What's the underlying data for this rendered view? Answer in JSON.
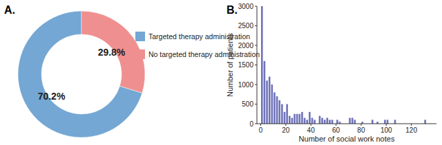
{
  "chart_data": [
    {
      "type": "donut",
      "title": "A.",
      "categories": [
        "Targeted therapy administration",
        "No targeted therapy administration"
      ],
      "values": [
        70.2,
        29.8
      ],
      "value_labels": [
        "70.2%",
        "29.8%"
      ],
      "colors": [
        "#74a7d3",
        "#ef8f8f"
      ],
      "data_labels": true,
      "legend": "right"
    },
    {
      "type": "histogram",
      "title": "B.",
      "x_label": "Number of social work notes",
      "y_label": "Number of patients",
      "bins": [
        0,
        2,
        4,
        6,
        8,
        10,
        12,
        14,
        16,
        18,
        20,
        22,
        24,
        26,
        28,
        30,
        32,
        34,
        36,
        38,
        40,
        42,
        44,
        46,
        48,
        50,
        52,
        54,
        56,
        58,
        60,
        62,
        64,
        66,
        68,
        70,
        72,
        74,
        76,
        78,
        80,
        82,
        84,
        86,
        88,
        90,
        92,
        94,
        96,
        98,
        100,
        102,
        104,
        106,
        108,
        110,
        112,
        114,
        116,
        118,
        120,
        122,
        124,
        126,
        128,
        130,
        132
      ],
      "values": [
        3000,
        1600,
        1100,
        1200,
        1000,
        800,
        700,
        600,
        500,
        300,
        500,
        200,
        150,
        250,
        250,
        250,
        300,
        150,
        100,
        300,
        150,
        100,
        0,
        200,
        150,
        100,
        150,
        100,
        100,
        0,
        100,
        50,
        0,
        0,
        0,
        150,
        150,
        100,
        0,
        0,
        50,
        0,
        0,
        0,
        100,
        0,
        50,
        0,
        0,
        100,
        100,
        0,
        0,
        100,
        0,
        0,
        0,
        0,
        0,
        0,
        0,
        0,
        0,
        0,
        0,
        100
      ],
      "color": "#6f73b8",
      "xlim": [
        -3,
        140
      ],
      "ylim": [
        0,
        3000
      ],
      "xticks": [
        0,
        20,
        40,
        60,
        80,
        100,
        120
      ],
      "yticks": [
        0,
        500,
        1000,
        1500,
        2000,
        2500,
        3000
      ],
      "grid": false
    }
  ]
}
